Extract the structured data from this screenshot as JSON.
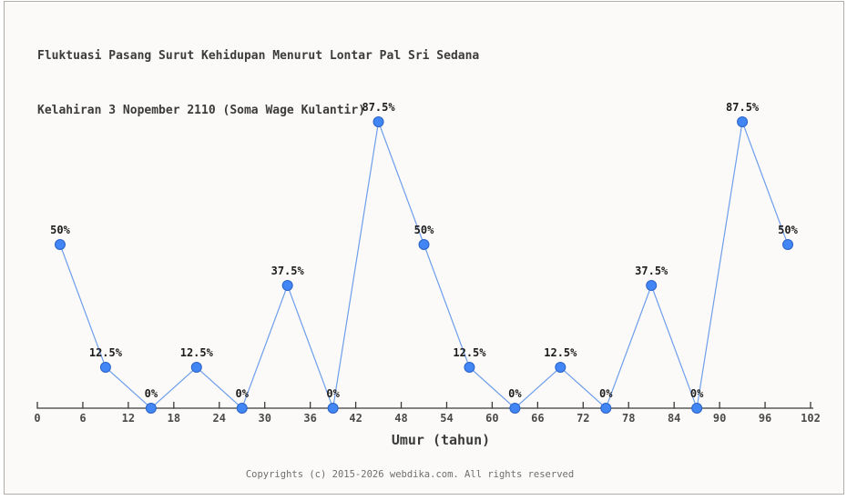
{
  "header": {
    "title_line1": "Fluktuasi Pasang Surut Kehidupan Menurut Lontar Pal Sri Sedana",
    "title_line2": "Kelahiran 3 Nopember 2110 (Soma Wage Kulantir)"
  },
  "footer": {
    "text": "Copyrights (c) 2015-2026 webdika.com. All rights reserved"
  },
  "chart_data": {
    "type": "line",
    "title": "Fluktuasi Pasang Surut Kehidupan Menurut Lontar Pal Sri Sedana Kelahiran 3 Nopember 2110 (Soma Wage Kulantir)",
    "xlabel": "Umur (tahun)",
    "ylabel": "",
    "x": [
      3,
      9,
      15,
      21,
      27,
      33,
      39,
      45,
      51,
      57,
      63,
      69,
      75,
      81,
      87,
      93,
      99
    ],
    "values": [
      50,
      12.5,
      0,
      12.5,
      0,
      37.5,
      0,
      87.5,
      50,
      12.5,
      0,
      12.5,
      0,
      37.5,
      0,
      87.5,
      50
    ],
    "point_labels": [
      "50%",
      "12.5%",
      "0%",
      "12.5%",
      "0%",
      "37.5%",
      "0%",
      "87.5%",
      "50%",
      "12.5%",
      "0%",
      "12.5%",
      "0%",
      "37.5%",
      "0%",
      "87.5%",
      "50%"
    ],
    "x_ticks": [
      0,
      6,
      12,
      18,
      24,
      30,
      36,
      42,
      48,
      54,
      60,
      66,
      72,
      78,
      84,
      90,
      96,
      102
    ],
    "xlim": [
      0,
      102
    ],
    "ylim": [
      0,
      100
    ],
    "grid": false,
    "legend": null,
    "colors": {
      "line": "#6d9eeb",
      "marker_fill": "#4285f4",
      "marker_stroke": "#2b63c6",
      "axis": "#3a3a3a",
      "tick_label": "#4a4a4a",
      "point_label": "#1c1c1c",
      "xlabel": "#3b3b3b",
      "background": "#fbfaf8",
      "border": "#b0aeab"
    }
  }
}
